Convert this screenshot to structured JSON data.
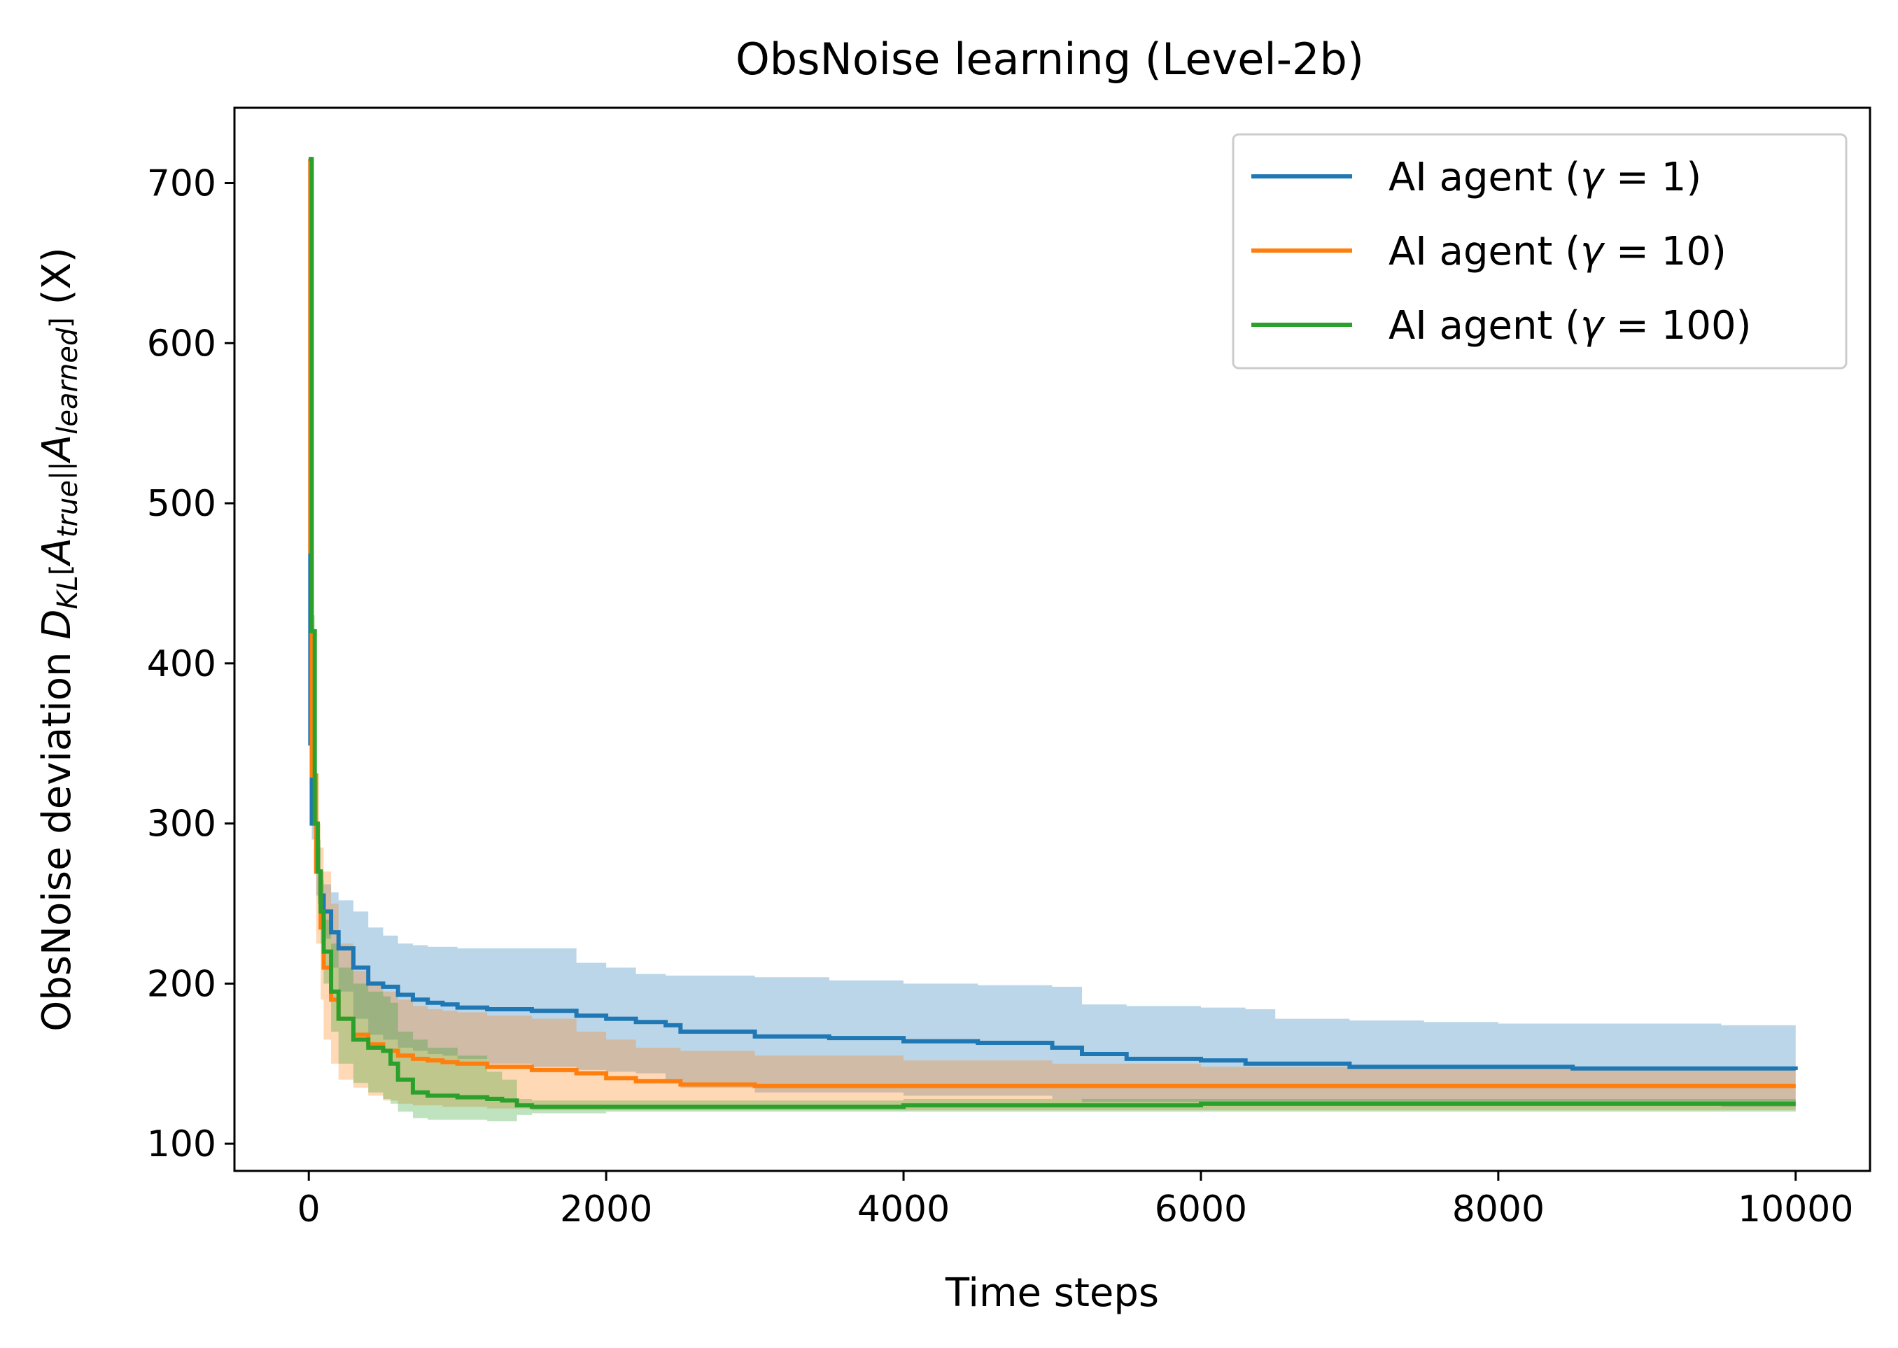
{
  "chart_data": {
    "type": "line",
    "title": "ObsNoise learning (Level-2b)",
    "xlabel": "Time steps",
    "ylabel": {
      "prefix": "ObsNoise deviation  ",
      "D": "D",
      "KL": "KL",
      "A_true": "A",
      "true": "true",
      "A_learned": "A",
      "learned": "learned",
      "suffix": " (X)"
    },
    "xlim": [
      -500,
      10500
    ],
    "ylim": [
      83,
      747
    ],
    "xticks": [
      0,
      2000,
      4000,
      6000,
      8000,
      10000
    ],
    "yticks": [
      100,
      200,
      300,
      400,
      500,
      600,
      700
    ],
    "grid": false,
    "legend_position": "top-right",
    "series": [
      {
        "name_prefix": "AI agent (",
        "name_gamma": "γ",
        "name_value": " = 1)",
        "color": "#1f77b4",
        "x": [
          0,
          10,
          20,
          50,
          80,
          100,
          150,
          200,
          300,
          400,
          500,
          600,
          700,
          800,
          900,
          1000,
          1200,
          1500,
          1800,
          2000,
          2200,
          2400,
          2500,
          3000,
          3500,
          4000,
          4500,
          5000,
          5200,
          5500,
          6000,
          6300,
          6500,
          7000,
          7500,
          8000,
          8500,
          9000,
          9500,
          10000
        ],
        "y": [
          715,
          350,
          300,
          270,
          255,
          245,
          232,
          222,
          210,
          200,
          198,
          193,
          190,
          188,
          187,
          185,
          184,
          183,
          180,
          178,
          176,
          174,
          170,
          167,
          166,
          164,
          163,
          160,
          156,
          153,
          152,
          150,
          150,
          148,
          148,
          148,
          147,
          147,
          147,
          146
        ],
        "upper": [
          715,
          360,
          310,
          285,
          270,
          262,
          257,
          252,
          245,
          235,
          230,
          225,
          224,
          223,
          223,
          222,
          222,
          222,
          213,
          210,
          206,
          205,
          205,
          204,
          202,
          200,
          199,
          198,
          187,
          186,
          185,
          184,
          178,
          177,
          176,
          175,
          175,
          175,
          174,
          174
        ],
        "lower": [
          715,
          340,
          290,
          255,
          240,
          228,
          210,
          195,
          178,
          168,
          165,
          160,
          158,
          156,
          155,
          153,
          150,
          148,
          146,
          145,
          144,
          140,
          135,
          132,
          132,
          130,
          130,
          128,
          126,
          126,
          126,
          125,
          125,
          124,
          124,
          124,
          124,
          124,
          123,
          123
        ]
      },
      {
        "name_prefix": "AI agent (",
        "name_gamma": "γ",
        "name_value": " = 10)",
        "color": "#ff7f0e",
        "x": [
          0,
          10,
          20,
          50,
          80,
          100,
          150,
          200,
          300,
          400,
          500,
          600,
          700,
          800,
          900,
          1000,
          1200,
          1500,
          1800,
          2000,
          2200,
          2500,
          3000,
          4000,
          5000,
          6000,
          7000,
          8000,
          9000,
          10000
        ],
        "y": [
          715,
          470,
          330,
          270,
          235,
          210,
          190,
          178,
          168,
          162,
          158,
          155,
          153,
          152,
          151,
          150,
          148,
          146,
          144,
          141,
          139,
          137,
          136,
          136,
          136,
          136,
          136,
          136,
          136,
          136
        ],
        "upper": [
          715,
          475,
          360,
          300,
          285,
          270,
          250,
          225,
          208,
          200,
          195,
          190,
          186,
          184,
          183,
          182,
          180,
          178,
          170,
          165,
          160,
          158,
          155,
          152,
          150,
          148,
          147,
          147,
          146,
          146
        ],
        "lower": [
          715,
          460,
          300,
          225,
          190,
          165,
          150,
          140,
          135,
          130,
          127,
          125,
          124,
          124,
          123,
          123,
          122,
          121,
          121,
          121,
          121,
          121,
          121,
          121,
          121,
          121,
          121,
          121,
          121,
          121
        ]
      },
      {
        "name_prefix": "AI agent (",
        "name_gamma": "γ",
        "name_value": " = 100)",
        "color": "#2ca02c",
        "x": [
          0,
          10,
          20,
          40,
          60,
          80,
          100,
          150,
          200,
          300,
          400,
          500,
          550,
          600,
          700,
          800,
          1000,
          1200,
          1300,
          1400,
          1500,
          2000,
          3000,
          4000,
          5000,
          6000,
          7000,
          8000,
          9000,
          10000
        ],
        "y": [
          715,
          715,
          420,
          300,
          270,
          245,
          220,
          195,
          178,
          165,
          160,
          158,
          150,
          140,
          132,
          130,
          129,
          128,
          127,
          124,
          123,
          123,
          123,
          124,
          124,
          125,
          125,
          125,
          125,
          125
        ],
        "upper": [
          715,
          715,
          430,
          320,
          290,
          265,
          240,
          225,
          210,
          200,
          195,
          192,
          188,
          170,
          165,
          160,
          155,
          145,
          140,
          128,
          127,
          127,
          127,
          128,
          128,
          128,
          128,
          128,
          128,
          128
        ],
        "lower": [
          715,
          715,
          410,
          280,
          250,
          225,
          200,
          170,
          150,
          138,
          132,
          128,
          125,
          120,
          116,
          115,
          115,
          114,
          114,
          118,
          119,
          120,
          120,
          120,
          120,
          120,
          120,
          120,
          120,
          120
        ]
      }
    ]
  }
}
